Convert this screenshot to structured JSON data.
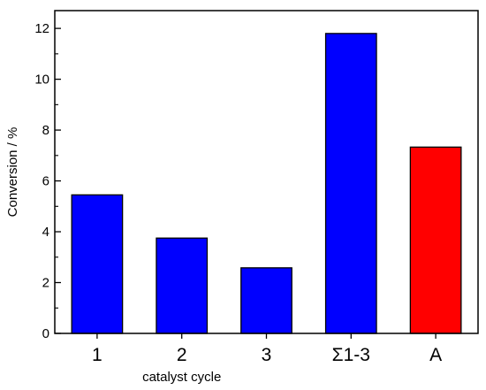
{
  "chart_data": {
    "type": "bar",
    "categories": [
      "1",
      "2",
      "3",
      "Σ1-3",
      "A"
    ],
    "values": [
      5.45,
      3.75,
      2.58,
      11.8,
      7.33
    ],
    "bar_colors": [
      "#0000ff",
      "#0000ff",
      "#0000ff",
      "#0000ff",
      "#ff0000"
    ],
    "xlabel": "catalyst cycle",
    "ylabel": "Conversion / %",
    "ylim": [
      0,
      12.7
    ],
    "yticks": [
      0,
      2,
      4,
      6,
      8,
      10,
      12
    ],
    "yticks_minor": [
      1,
      3,
      5,
      7,
      9,
      11
    ],
    "grid": false,
    "legend": "none"
  }
}
